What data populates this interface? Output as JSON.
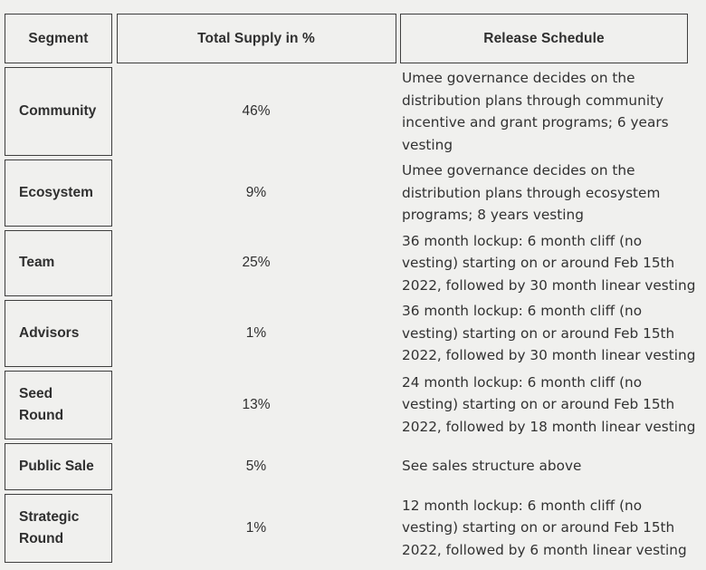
{
  "theme": {
    "background_color": "#f0f0ee",
    "border_color": "#3e3e3e",
    "text_color": "#2f2f2f"
  },
  "table": {
    "columns": [
      "Segment",
      "Total Supply in %",
      "Release Schedule"
    ],
    "rows": [
      {
        "segment": "Community",
        "supply": "46%",
        "schedule": "Umee governance decides on the\ndistribution plans through community\nincentive and grant programs; 6 years\nvesting"
      },
      {
        "segment": "Ecosystem",
        "supply": "9%",
        "schedule": "Umee governance decides on the\ndistribution plans through ecosystem\nprograms; 8 years vesting"
      },
      {
        "segment": "Team",
        "supply": "25%",
        "schedule": "36 month lockup: 6 month cliff (no\nvesting) starting on or around Feb 15th\n2022, followed by 30 month linear vesting"
      },
      {
        "segment": "Advisors",
        "supply": "1%",
        "schedule": "36 month lockup: 6 month cliff (no\nvesting) starting on or around Feb 15th\n2022, followed by 30 month linear vesting"
      },
      {
        "segment": "Seed\nRound",
        "supply": "13%",
        "schedule": "24 month lockup: 6 month cliff (no\nvesting) starting on or around Feb 15th\n2022, followed by 18 month linear vesting"
      },
      {
        "segment": "Public Sale",
        "supply": "5%",
        "schedule": "See sales structure above"
      },
      {
        "segment": "Strategic\nRound",
        "supply": "1%",
        "schedule": "12 month lockup: 6 month cliff (no\nvesting) starting on or around Feb 15th\n2022, followed by 6 month linear vesting"
      }
    ]
  }
}
